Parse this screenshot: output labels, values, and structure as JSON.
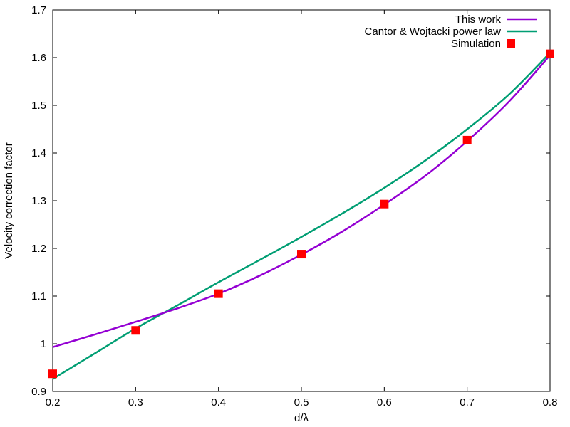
{
  "chart_data": {
    "type": "line",
    "xlabel": "d/λ",
    "ylabel": "Velocity correction factor",
    "xlim": [
      0.2,
      0.8
    ],
    "ylim": [
      0.9,
      1.7
    ],
    "xticks": [
      0.2,
      0.3,
      0.4,
      0.5,
      0.6,
      0.7,
      0.8
    ],
    "xtick_labels": [
      "0.2",
      "0.3",
      "0.4",
      "0.5",
      "0.6",
      "0.7",
      "0.8"
    ],
    "yticks": [
      0.9,
      1.0,
      1.1,
      1.2,
      1.3,
      1.4,
      1.5,
      1.6,
      1.7
    ],
    "ytick_labels": [
      "0.9",
      "1",
      "1.1",
      "1.2",
      "1.3",
      "1.4",
      "1.5",
      "1.6",
      "1.7"
    ],
    "grid": false,
    "legend_position": "top-right",
    "series": [
      {
        "name": "This work",
        "type": "line",
        "color": "#9400d3",
        "x": [
          0.2,
          0.25,
          0.3,
          0.35,
          0.4,
          0.45,
          0.5,
          0.55,
          0.6,
          0.65,
          0.7,
          0.75,
          0.8
        ],
        "y": [
          0.993,
          1.019,
          1.046,
          1.074,
          1.105,
          1.143,
          1.187,
          1.236,
          1.292,
          1.353,
          1.425,
          1.507,
          1.605
        ]
      },
      {
        "name": "Cantor & Wojtacki power law",
        "type": "line",
        "color": "#009e73",
        "x": [
          0.2,
          0.25,
          0.3,
          0.35,
          0.4,
          0.45,
          0.5,
          0.55,
          0.6,
          0.65,
          0.7,
          0.75,
          0.8
        ],
        "y": [
          0.926,
          0.979,
          1.032,
          1.08,
          1.129,
          1.176,
          1.224,
          1.274,
          1.327,
          1.385,
          1.45,
          1.522,
          1.61
        ]
      },
      {
        "name": "Simulation",
        "type": "scatter",
        "color": "#ff0000",
        "marker": "square",
        "x": [
          0.2,
          0.3,
          0.4,
          0.5,
          0.6,
          0.7,
          0.8
        ],
        "y": [
          0.937,
          1.028,
          1.105,
          1.188,
          1.293,
          1.427,
          1.608
        ]
      }
    ]
  }
}
